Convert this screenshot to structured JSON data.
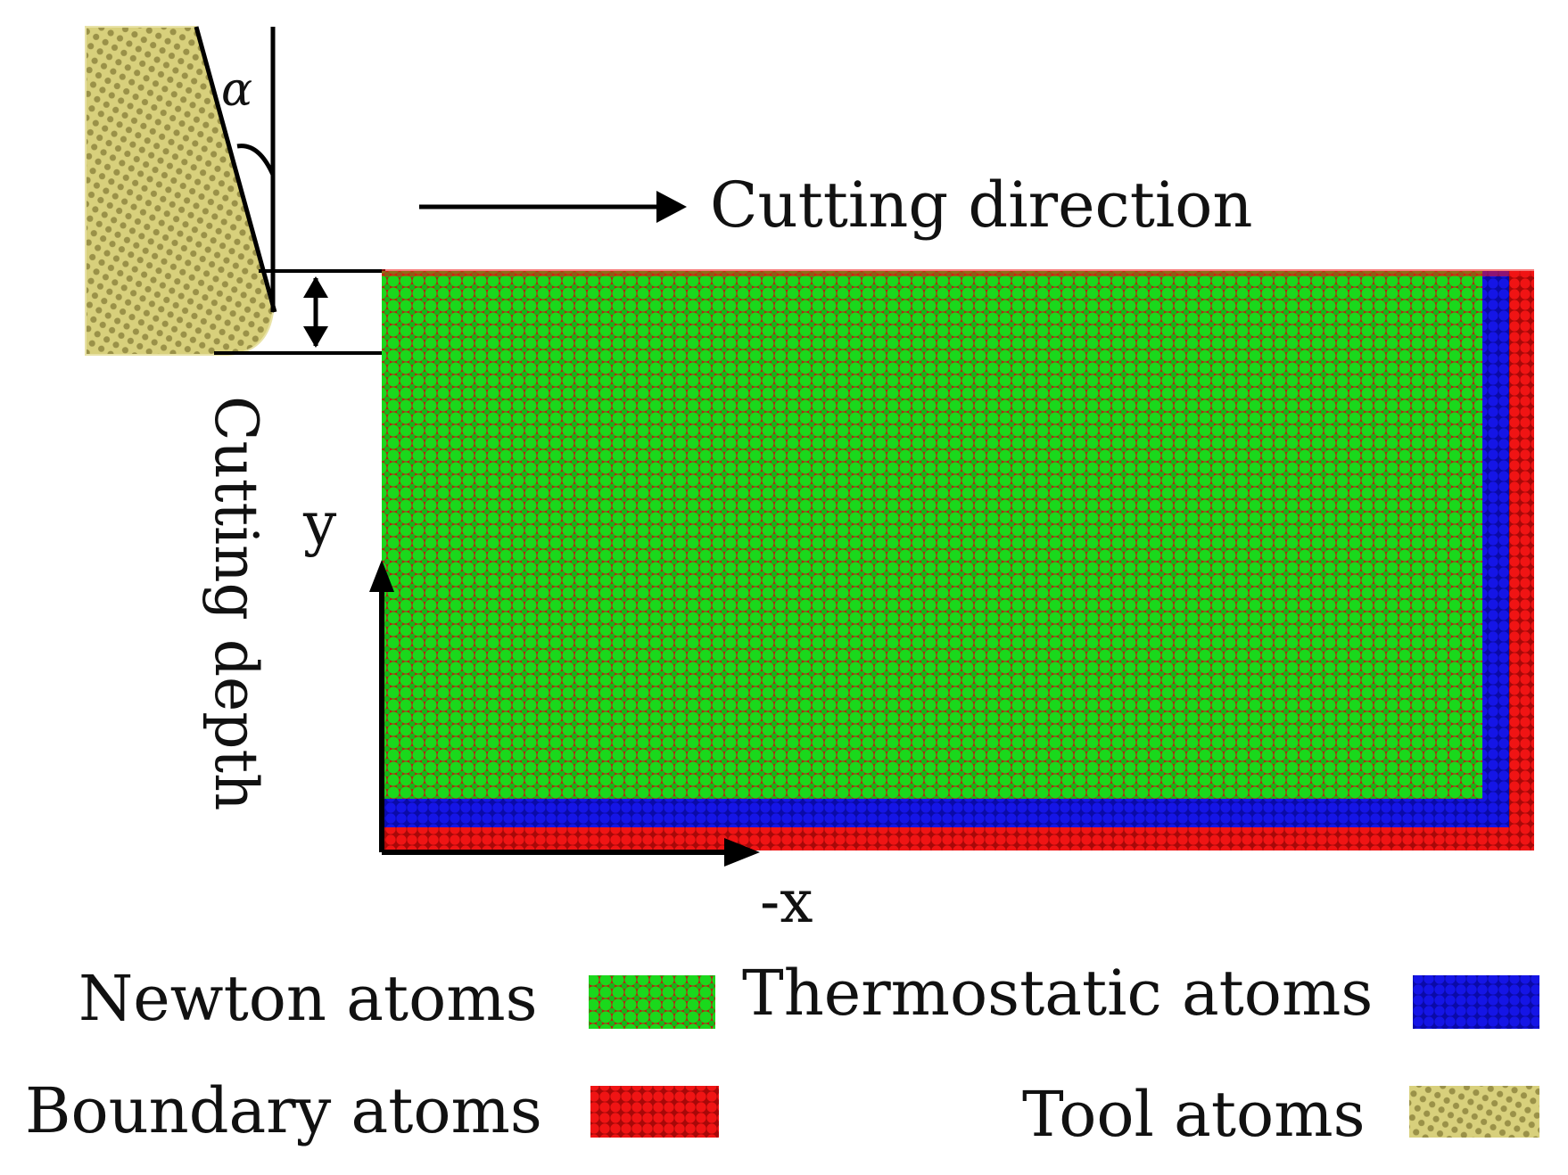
{
  "diagram": {
    "tool_angle_symbol": "α",
    "cutting_direction_label": "Cutting direction",
    "cutting_depth_label": "Cutting depth",
    "axis_y_label": "y",
    "axis_x_label": "-x"
  },
  "legend": {
    "newton": "Newton atoms",
    "thermostatic": "Thermostatic atoms",
    "boundary": "Boundary atoms",
    "tool": "Tool atoms"
  },
  "colors": {
    "newton_green": "#16d81a",
    "newton_dot": "#e01010",
    "thermostatic_blue": "#1010e0",
    "boundary_red": "#f01010",
    "tool_khaki": "#d6cf7a",
    "tool_dot": "#8c8340"
  }
}
